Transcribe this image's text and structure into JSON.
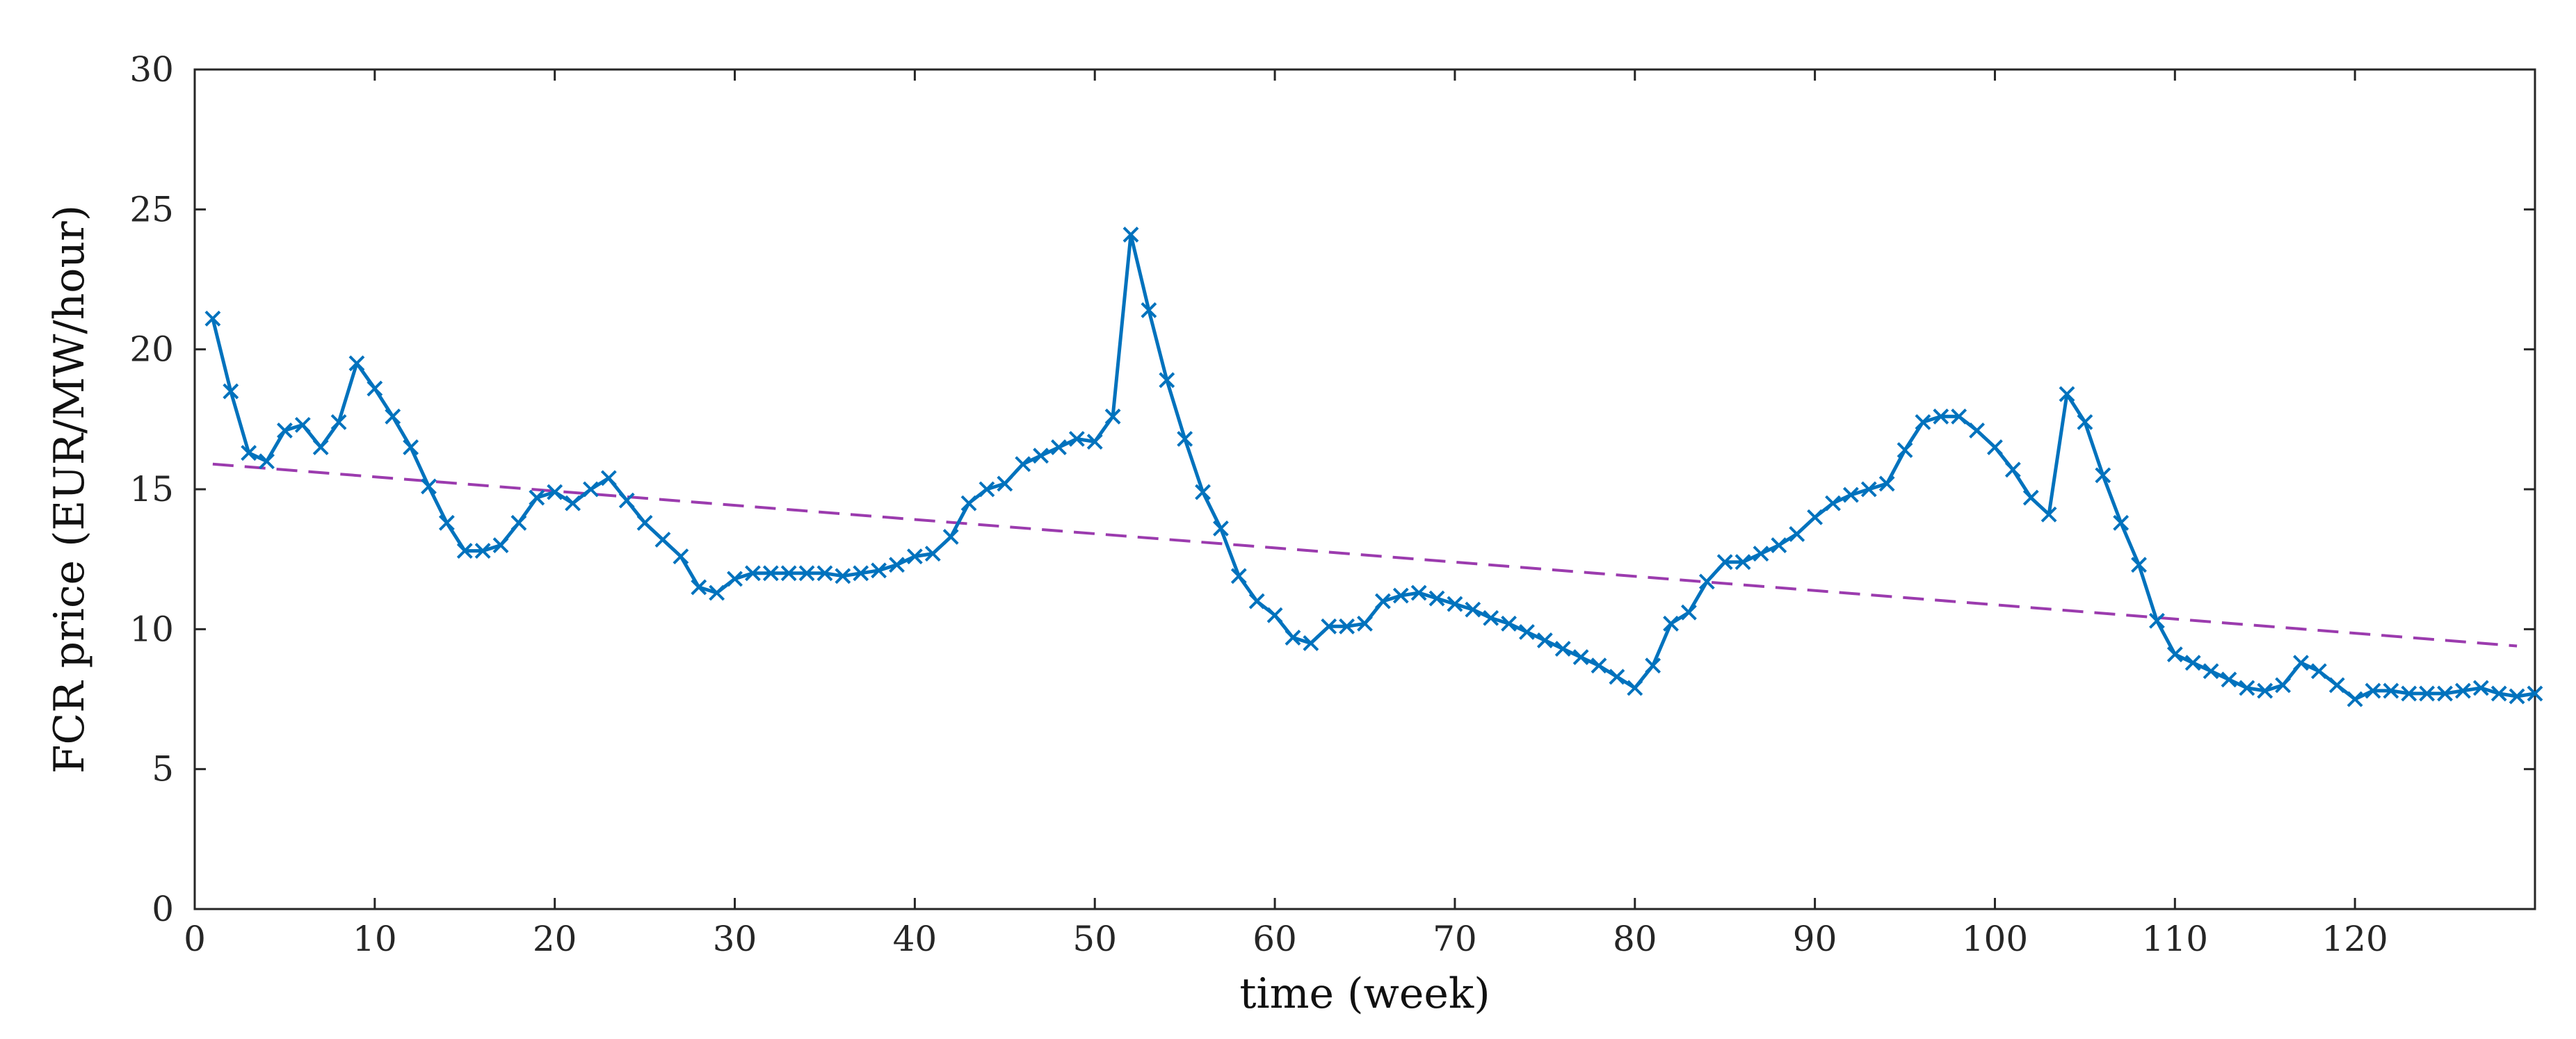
{
  "chart_data": {
    "type": "line",
    "xlabel": "time (week)",
    "ylabel": "FCR price (EUR/MW/hour)",
    "xlim": [
      0,
      130
    ],
    "ylim": [
      0,
      30
    ],
    "x_ticks": [
      0,
      10,
      20,
      30,
      40,
      50,
      60,
      70,
      80,
      90,
      100,
      110,
      120
    ],
    "y_ticks": [
      0,
      5,
      10,
      15,
      20,
      25,
      30
    ],
    "grid": false,
    "legend": "none",
    "series": [
      {
        "style": "solid line with x markers",
        "color": "#0072BD",
        "x": [
          1,
          2,
          3,
          4,
          5,
          6,
          7,
          8,
          9,
          10,
          11,
          12,
          13,
          14,
          15,
          16,
          17,
          18,
          19,
          20,
          21,
          22,
          23,
          24,
          25,
          26,
          27,
          28,
          29,
          30,
          31,
          32,
          33,
          34,
          35,
          36,
          37,
          38,
          39,
          40,
          41,
          42,
          43,
          44,
          45,
          46,
          47,
          48,
          49,
          50,
          51,
          52,
          53,
          54,
          55,
          56,
          57,
          58,
          59,
          60,
          61,
          62,
          63,
          64,
          65,
          66,
          67,
          68,
          69,
          70,
          71,
          72,
          73,
          74,
          75,
          76,
          77,
          78,
          79,
          80,
          81,
          82,
          83,
          84,
          85,
          86,
          87,
          88,
          89,
          90,
          91,
          92,
          93,
          94,
          95,
          96,
          97,
          98,
          99,
          100,
          101,
          102,
          103,
          104,
          105,
          106,
          107,
          108,
          109,
          110,
          111,
          112,
          113,
          114,
          115,
          116,
          117,
          118,
          119,
          120,
          121,
          122,
          123,
          124,
          125,
          126,
          127,
          128,
          129,
          130
        ],
        "y": [
          21.1,
          18.5,
          16.3,
          16.0,
          17.1,
          17.3,
          16.5,
          17.4,
          19.5,
          18.6,
          17.6,
          16.5,
          15.1,
          13.8,
          12.8,
          12.8,
          13.0,
          13.8,
          14.7,
          14.9,
          14.5,
          15.0,
          15.4,
          14.6,
          13.8,
          13.2,
          12.6,
          11.5,
          11.3,
          11.8,
          12.0,
          12.0,
          12.0,
          12.0,
          12.0,
          11.9,
          12.0,
          12.1,
          12.3,
          12.6,
          12.7,
          13.3,
          14.5,
          15.0,
          15.2,
          15.9,
          16.2,
          16.5,
          16.8,
          16.7,
          17.6,
          24.1,
          21.4,
          18.9,
          16.8,
          14.9,
          13.6,
          11.9,
          11.0,
          10.5,
          9.7,
          9.5,
          10.1,
          10.1,
          10.2,
          11.0,
          11.2,
          11.3,
          11.1,
          10.9,
          10.7,
          10.4,
          10.2,
          9.9,
          9.6,
          9.3,
          9.0,
          8.7,
          8.3,
          7.9,
          8.7,
          10.2,
          10.6,
          11.7,
          12.4,
          12.4,
          12.7,
          13.0,
          13.4,
          14.0,
          14.5,
          14.8,
          15.0,
          15.2,
          16.4,
          17.4,
          17.6,
          17.6,
          17.1,
          16.5,
          15.7,
          14.7,
          14.1,
          18.4,
          17.4,
          15.5,
          13.8,
          12.3,
          10.3,
          9.1,
          8.8,
          8.5,
          8.2,
          7.9,
          7.8,
          8.0,
          8.8,
          8.5,
          8.0,
          7.5,
          7.8,
          7.8,
          7.7,
          7.7,
          7.7,
          7.8,
          7.9,
          7.7,
          7.6,
          7.7
        ]
      },
      {
        "style": "dashed trend line",
        "color": "#9B3BAE",
        "x": [
          1,
          129
        ],
        "y": [
          15.9,
          9.4
        ]
      }
    ]
  }
}
